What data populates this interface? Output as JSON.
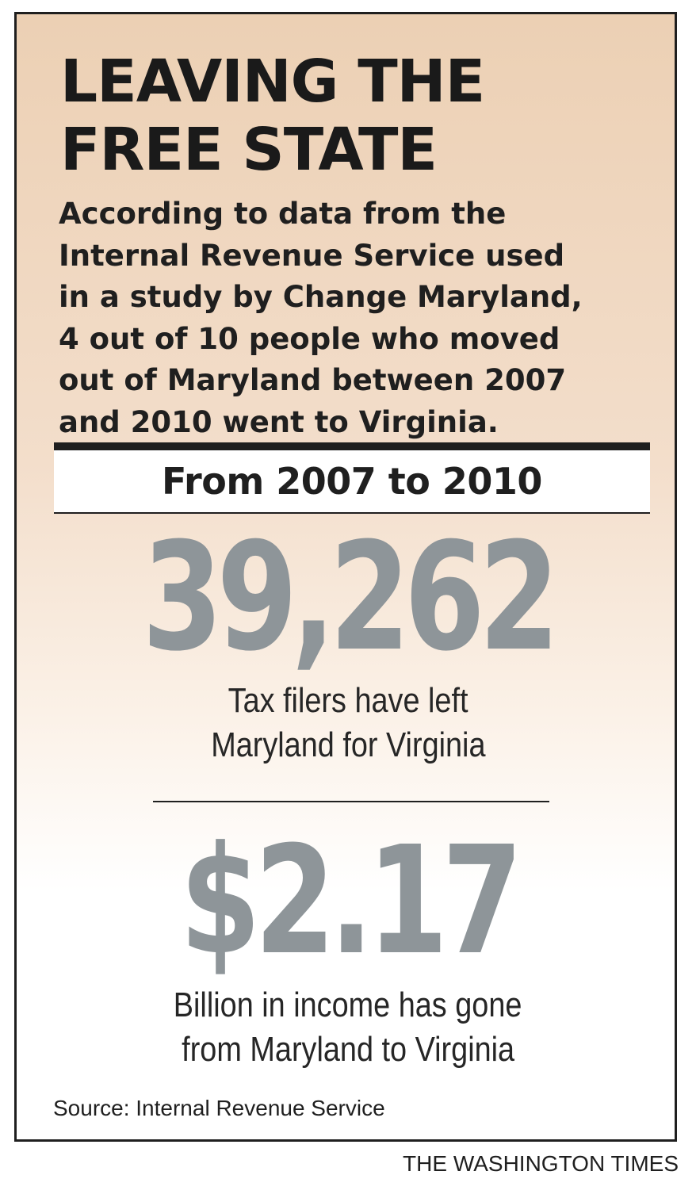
{
  "headline": {
    "line1": "LEAVING THE",
    "line2": "FREE STATE"
  },
  "intro": {
    "line1": "According to data from the",
    "line2": "Internal Revenue Service used",
    "line3": "in a study by Change Maryland,",
    "line4": "4 out of 10 people who moved",
    "line5": "out of Maryland between 2007",
    "line6": "and 2010 went to Virginia."
  },
  "period_label": "From 2007 to 2010",
  "stats": [
    {
      "value": "39,262",
      "caption_line1": "Tax filers have left",
      "caption_line2": "Maryland for Virginia"
    },
    {
      "value": "$2.17",
      "caption_line1": "Billion in income has gone",
      "caption_line2": "from Maryland to Virginia"
    }
  ],
  "source": "Source: Internal Revenue Service",
  "credit": "THE WASHINGTON TIMES",
  "colors": {
    "background_top": "#ecd0b4",
    "background_bottom": "#ffffff",
    "stat_number": "#8e9599",
    "text": "#1f1f1f"
  }
}
